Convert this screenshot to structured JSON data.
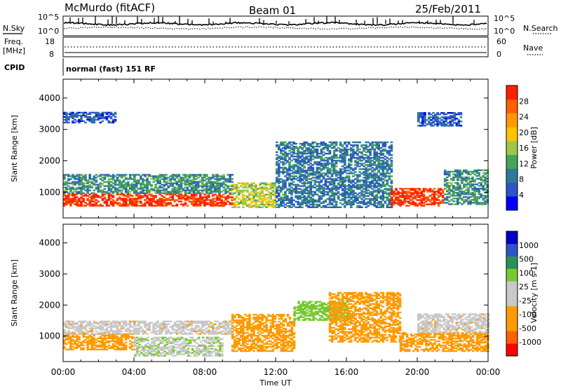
{
  "header": {
    "station": "McMurdo (fitACF)",
    "beam": "Beam 01",
    "date": "25/Feb/2011",
    "mode": "normal (fast) 151 RF"
  },
  "strip": {
    "nsky_label": "N.Sky",
    "nsky_ticks": [
      "10^5",
      "10^0"
    ],
    "nsearch_label": "N.Search",
    "nsearch_ticks": [
      "10^5",
      "10^0"
    ],
    "freq_label": "Freq.",
    "freq_unit": "[MHz]",
    "freq_ticks": [
      "18",
      "8"
    ],
    "nave_label": "Nave",
    "nave_ticks": [
      "60",
      "0"
    ],
    "cpid_label": "CPID"
  },
  "colors": {
    "power_scale": [
      "#0000ff",
      "#2c55c8",
      "#2f7a9a",
      "#46a35c",
      "#99c84a",
      "#ffc400",
      "#ff9a00",
      "#ff6000",
      "#ff2000"
    ],
    "velocity_scale": [
      "#ff0000",
      "#ff6000",
      "#ff9a00",
      "#ff9a00",
      "#c8c8c8",
      "#c8c8c8",
      "#79c832",
      "#2f8f5a",
      "#2c55c8",
      "#0000c8"
    ]
  },
  "chart_data": [
    {
      "type": "heatmap",
      "panel": "power",
      "title": "",
      "xlabel": "Time UT",
      "ylabel": "Slant Range [km]",
      "ylim": [
        180,
        4600
      ],
      "xlim": [
        "00:00",
        "24:00"
      ],
      "x_ticks": [
        "00:00",
        "04:00",
        "08:00",
        "12:00",
        "16:00",
        "20:00",
        "00:00"
      ],
      "y_ticks": [
        1000,
        2000,
        3000,
        4000
      ],
      "colorbar": {
        "label": "Power [dB]",
        "ticks": [
          4,
          8,
          12,
          16,
          20,
          24,
          28
        ],
        "range": [
          0,
          30
        ]
      },
      "echo_regions": [
        {
          "t_start": 0.0,
          "t_end": 9.5,
          "range_low": 550,
          "range_high": 950,
          "value": 28
        },
        {
          "t_start": 0.0,
          "t_end": 9.5,
          "range_low": 950,
          "range_high": 1550,
          "value": 10
        },
        {
          "t_start": 9.5,
          "t_end": 12.0,
          "range_low": 500,
          "range_high": 1300,
          "value": 16
        },
        {
          "t_start": 12.0,
          "t_end": 18.5,
          "range_low": 500,
          "range_high": 2600,
          "value": 8
        },
        {
          "t_start": 18.5,
          "t_end": 21.5,
          "range_low": 550,
          "range_high": 1100,
          "value": 28
        },
        {
          "t_start": 21.5,
          "t_end": 24.0,
          "range_low": 600,
          "range_high": 1700,
          "value": 10
        },
        {
          "t_start": 0.0,
          "t_end": 3.0,
          "range_low": 3200,
          "range_high": 3550,
          "value": 6
        },
        {
          "t_start": 20.0,
          "t_end": 22.5,
          "range_low": 3100,
          "range_high": 3550,
          "value": 6
        }
      ]
    },
    {
      "type": "heatmap",
      "panel": "velocity",
      "title": "",
      "xlabel": "Time UT",
      "ylabel": "Slant Range [km]",
      "ylim": [
        180,
        4600
      ],
      "xlim": [
        "00:00",
        "24:00"
      ],
      "x_ticks": [
        "00:00",
        "04:00",
        "08:00",
        "12:00",
        "16:00",
        "20:00",
        "00:00"
      ],
      "y_ticks": [
        1000,
        2000,
        3000,
        4000
      ],
      "colorbar": {
        "label": "Velocity [m s-1]",
        "ticks": [
          "1000",
          "500",
          "100",
          "25",
          "-25",
          "-100",
          "-500",
          "-1000"
        ]
      },
      "echo_regions": [
        {
          "t_start": 0.0,
          "t_end": 4.0,
          "range_low": 550,
          "range_high": 1050,
          "value": -300
        },
        {
          "t_start": 4.0,
          "t_end": 9.0,
          "range_low": 350,
          "range_high": 950,
          "value": 80
        },
        {
          "t_start": 0.0,
          "t_end": 9.5,
          "range_low": 1050,
          "range_high": 1500,
          "value": 0
        },
        {
          "t_start": 9.5,
          "t_end": 13.0,
          "range_low": 500,
          "range_high": 1700,
          "value": -300
        },
        {
          "t_start": 13.0,
          "t_end": 16.0,
          "range_low": 1500,
          "range_high": 2100,
          "value": 300
        },
        {
          "t_start": 15.0,
          "t_end": 19.0,
          "range_low": 800,
          "range_high": 2400,
          "value": -300
        },
        {
          "t_start": 19.0,
          "t_end": 24.0,
          "range_low": 500,
          "range_high": 1100,
          "value": -200
        },
        {
          "t_start": 20.0,
          "t_end": 24.0,
          "range_low": 1100,
          "range_high": 1700,
          "value": 0
        }
      ]
    }
  ]
}
